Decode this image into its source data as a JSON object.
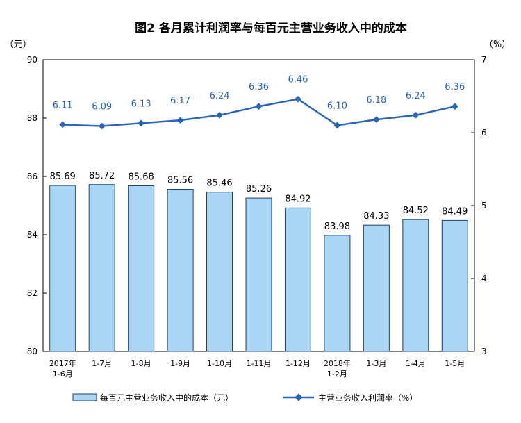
{
  "chart_data": {
    "type": "bar",
    "title": "图2 各月累计利润率与每百元主营业务收入中的成本",
    "left_unit": "（元）",
    "right_unit": "（%）",
    "categories": [
      [
        "2017年",
        "1-6月"
      ],
      [
        "1-7月"
      ],
      [
        "1-8月"
      ],
      [
        "1-9月"
      ],
      [
        "1-10月"
      ],
      [
        "1-11月"
      ],
      [
        "1-12月"
      ],
      [
        "2018年",
        "1-2月"
      ],
      [
        "1-3月"
      ],
      [
        "1-4月"
      ],
      [
        "1-5月"
      ]
    ],
    "series": [
      {
        "name": "每百元主营业务收入中的成本（元）",
        "type": "bar",
        "axis": "left",
        "values": [
          85.69,
          85.72,
          85.68,
          85.56,
          85.46,
          85.26,
          84.92,
          83.98,
          84.33,
          84.52,
          84.49
        ],
        "labels": [
          "85.69",
          "85.72",
          "85.68",
          "85.56",
          "85.46",
          "85.26",
          "84.92",
          "83.98",
          "84.33",
          "84.52",
          "84.49"
        ]
      },
      {
        "name": "主营业务收入利润率（%）",
        "type": "line",
        "axis": "right",
        "values": [
          6.11,
          6.09,
          6.13,
          6.17,
          6.24,
          6.36,
          6.46,
          6.1,
          6.18,
          6.24,
          6.36
        ],
        "labels": [
          "6.11",
          "6.09",
          "6.13",
          "6.17",
          "6.24",
          "6.36",
          "6.46",
          "6.10",
          "6.18",
          "6.24",
          "6.36"
        ]
      }
    ],
    "left_axis": {
      "min": 80,
      "max": 90,
      "ticks": [
        "80",
        "82",
        "84",
        "86",
        "88",
        "90"
      ]
    },
    "right_axis": {
      "min": 3,
      "max": 7,
      "ticks": [
        "3",
        "4",
        "5",
        "6",
        "7"
      ]
    },
    "grid": false,
    "legend_position": "bottom",
    "colors": {
      "bar_fill": "#a9d6f5",
      "bar_stroke": "#1f3f6e",
      "line": "#2a66b8",
      "axis": "#000000"
    }
  }
}
